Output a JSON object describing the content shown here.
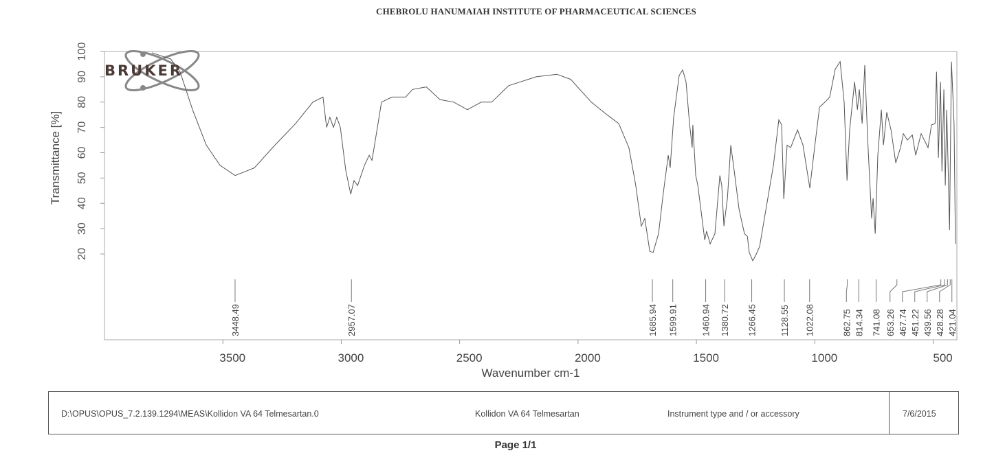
{
  "header": {
    "institute": "CHEBROLU HANUMAIAH INSTITUTE OF PHARMACEUTICAL SCIENCES"
  },
  "logo": {
    "text": "BRUKER"
  },
  "footer": {
    "path": "D:\\OPUS\\OPUS_7.2.139.1294\\MEAS\\Kollidon VA 64 Telmesartan.0",
    "sample": "Kollidon VA 64 Telmesartan",
    "instrument": "Instrument type and / or accessory",
    "date": "7/6/2015"
  },
  "page_label": "Page 1/1",
  "colors": {
    "line": "#555555",
    "logo": "#4a3a36",
    "axis": "#999999"
  },
  "chart_data": {
    "type": "line",
    "title": "",
    "xlabel": "Wavenumber cm-1",
    "ylabel": "Transmittance [%]",
    "xlim": [
      4000,
      400
    ],
    "ylim": [
      0,
      100
    ],
    "x_ticks": [
      3500,
      3000,
      2500,
      2000,
      1500,
      1000,
      500
    ],
    "x_tick_labels": [
      "3500",
      "3000",
      "2500",
      "2000",
      "1500",
      "1000",
      "500"
    ],
    "y_ticks": [
      20,
      30,
      40,
      50,
      60,
      70,
      80,
      90,
      100
    ],
    "y_tick_labels": [
      "20",
      "30",
      "40",
      "50",
      "60",
      "70",
      "80",
      "90",
      "100"
    ],
    "grid": false,
    "peak_labels": [
      "3448.49",
      "2957.07",
      "1685.94",
      "1599.91",
      "1460.94",
      "1380.72",
      "1266.45",
      "1128.55",
      "1022.08",
      "862.75",
      "814.34",
      "741.08",
      "653.26",
      "467.74",
      "451.22",
      "439.56",
      "428.28",
      "421.04"
    ],
    "series": [
      {
        "name": "Kollidon VA 64 Telmesartan",
        "points": [
          [
            3800,
            99.5
          ],
          [
            3720,
            97
          ],
          [
            3681,
            92
          ],
          [
            3628,
            77
          ],
          [
            3570,
            63
          ],
          [
            3512,
            55
          ],
          [
            3448,
            51
          ],
          [
            3367,
            54
          ],
          [
            3280,
            63
          ],
          [
            3193,
            71.5
          ],
          [
            3120,
            80
          ],
          [
            3077,
            82
          ],
          [
            3062,
            70
          ],
          [
            3048,
            74
          ],
          [
            3033,
            70
          ],
          [
            3019,
            74
          ],
          [
            3004,
            70
          ],
          [
            2981,
            53
          ],
          [
            2960,
            43.6
          ],
          [
            2946,
            49
          ],
          [
            2931,
            47
          ],
          [
            2902,
            55
          ],
          [
            2882,
            59
          ],
          [
            2870,
            57
          ],
          [
            2830,
            80
          ],
          [
            2786,
            82
          ],
          [
            2728,
            82
          ],
          [
            2699,
            85
          ],
          [
            2641,
            86
          ],
          [
            2583,
            81
          ],
          [
            2525,
            80
          ],
          [
            2467,
            77
          ],
          [
            2409,
            80
          ],
          [
            2365,
            80
          ],
          [
            2293,
            86.5
          ],
          [
            2177,
            90
          ],
          [
            2089,
            91
          ],
          [
            2031,
            89
          ],
          [
            1944,
            80
          ],
          [
            1886,
            75.6
          ],
          [
            1828,
            71.5
          ],
          [
            1785,
            62
          ],
          [
            1756,
            47
          ],
          [
            1733,
            31
          ],
          [
            1718,
            34
          ],
          [
            1697,
            21
          ],
          [
            1683,
            20.6
          ],
          [
            1660,
            28
          ],
          [
            1640,
            44
          ],
          [
            1619,
            59
          ],
          [
            1611,
            54
          ],
          [
            1596,
            74
          ],
          [
            1573,
            90.5
          ],
          [
            1558,
            92.7
          ],
          [
            1544,
            88
          ],
          [
            1529,
            71.5
          ],
          [
            1518,
            62
          ],
          [
            1515,
            71
          ],
          [
            1503,
            51
          ],
          [
            1494,
            47
          ],
          [
            1465,
            25.5
          ],
          [
            1457,
            29
          ],
          [
            1442,
            24
          ],
          [
            1422,
            28
          ],
          [
            1401,
            51
          ],
          [
            1393,
            47
          ],
          [
            1384,
            31
          ],
          [
            1369,
            42
          ],
          [
            1355,
            63
          ],
          [
            1340,
            52.6
          ],
          [
            1320,
            37.7
          ],
          [
            1297,
            28
          ],
          [
            1285,
            27
          ],
          [
            1277,
            20.6
          ],
          [
            1262,
            17.3
          ],
          [
            1247,
            20
          ],
          [
            1233,
            23
          ],
          [
            1204,
            39
          ],
          [
            1175,
            55
          ],
          [
            1152,
            73
          ],
          [
            1140,
            71
          ],
          [
            1131,
            41.7
          ],
          [
            1117,
            63
          ],
          [
            1102,
            62
          ],
          [
            1073,
            69
          ],
          [
            1050,
            63
          ],
          [
            1021,
            46
          ],
          [
            1001,
            62
          ],
          [
            980,
            78
          ],
          [
            957,
            80
          ],
          [
            937,
            82
          ],
          [
            914,
            93
          ],
          [
            893,
            96
          ],
          [
            876,
            80
          ],
          [
            864,
            49
          ],
          [
            853,
            69
          ],
          [
            832,
            88
          ],
          [
            820,
            77
          ],
          [
            812,
            85
          ],
          [
            800,
            71.5
          ],
          [
            789,
            94.6
          ],
          [
            777,
            66
          ],
          [
            760,
            34
          ],
          [
            754,
            42
          ],
          [
            745,
            28
          ],
          [
            734,
            59
          ],
          [
            719,
            77
          ],
          [
            710,
            63
          ],
          [
            696,
            76
          ],
          [
            678,
            69
          ],
          [
            658,
            56
          ],
          [
            638,
            62
          ],
          [
            626,
            67.5
          ],
          [
            609,
            65
          ],
          [
            588,
            67
          ],
          [
            574,
            59
          ],
          [
            551,
            67.5
          ],
          [
            522,
            62
          ],
          [
            507,
            71
          ],
          [
            492,
            71.5
          ],
          [
            486,
            92
          ],
          [
            478,
            58
          ],
          [
            469,
            88
          ],
          [
            463,
            52.6
          ],
          [
            455,
            85
          ],
          [
            449,
            47
          ],
          [
            443,
            77
          ],
          [
            437,
            54
          ],
          [
            431,
            29.5
          ],
          [
            423,
            96
          ],
          [
            412,
            71.5
          ],
          [
            406,
            24
          ]
        ]
      }
    ]
  }
}
